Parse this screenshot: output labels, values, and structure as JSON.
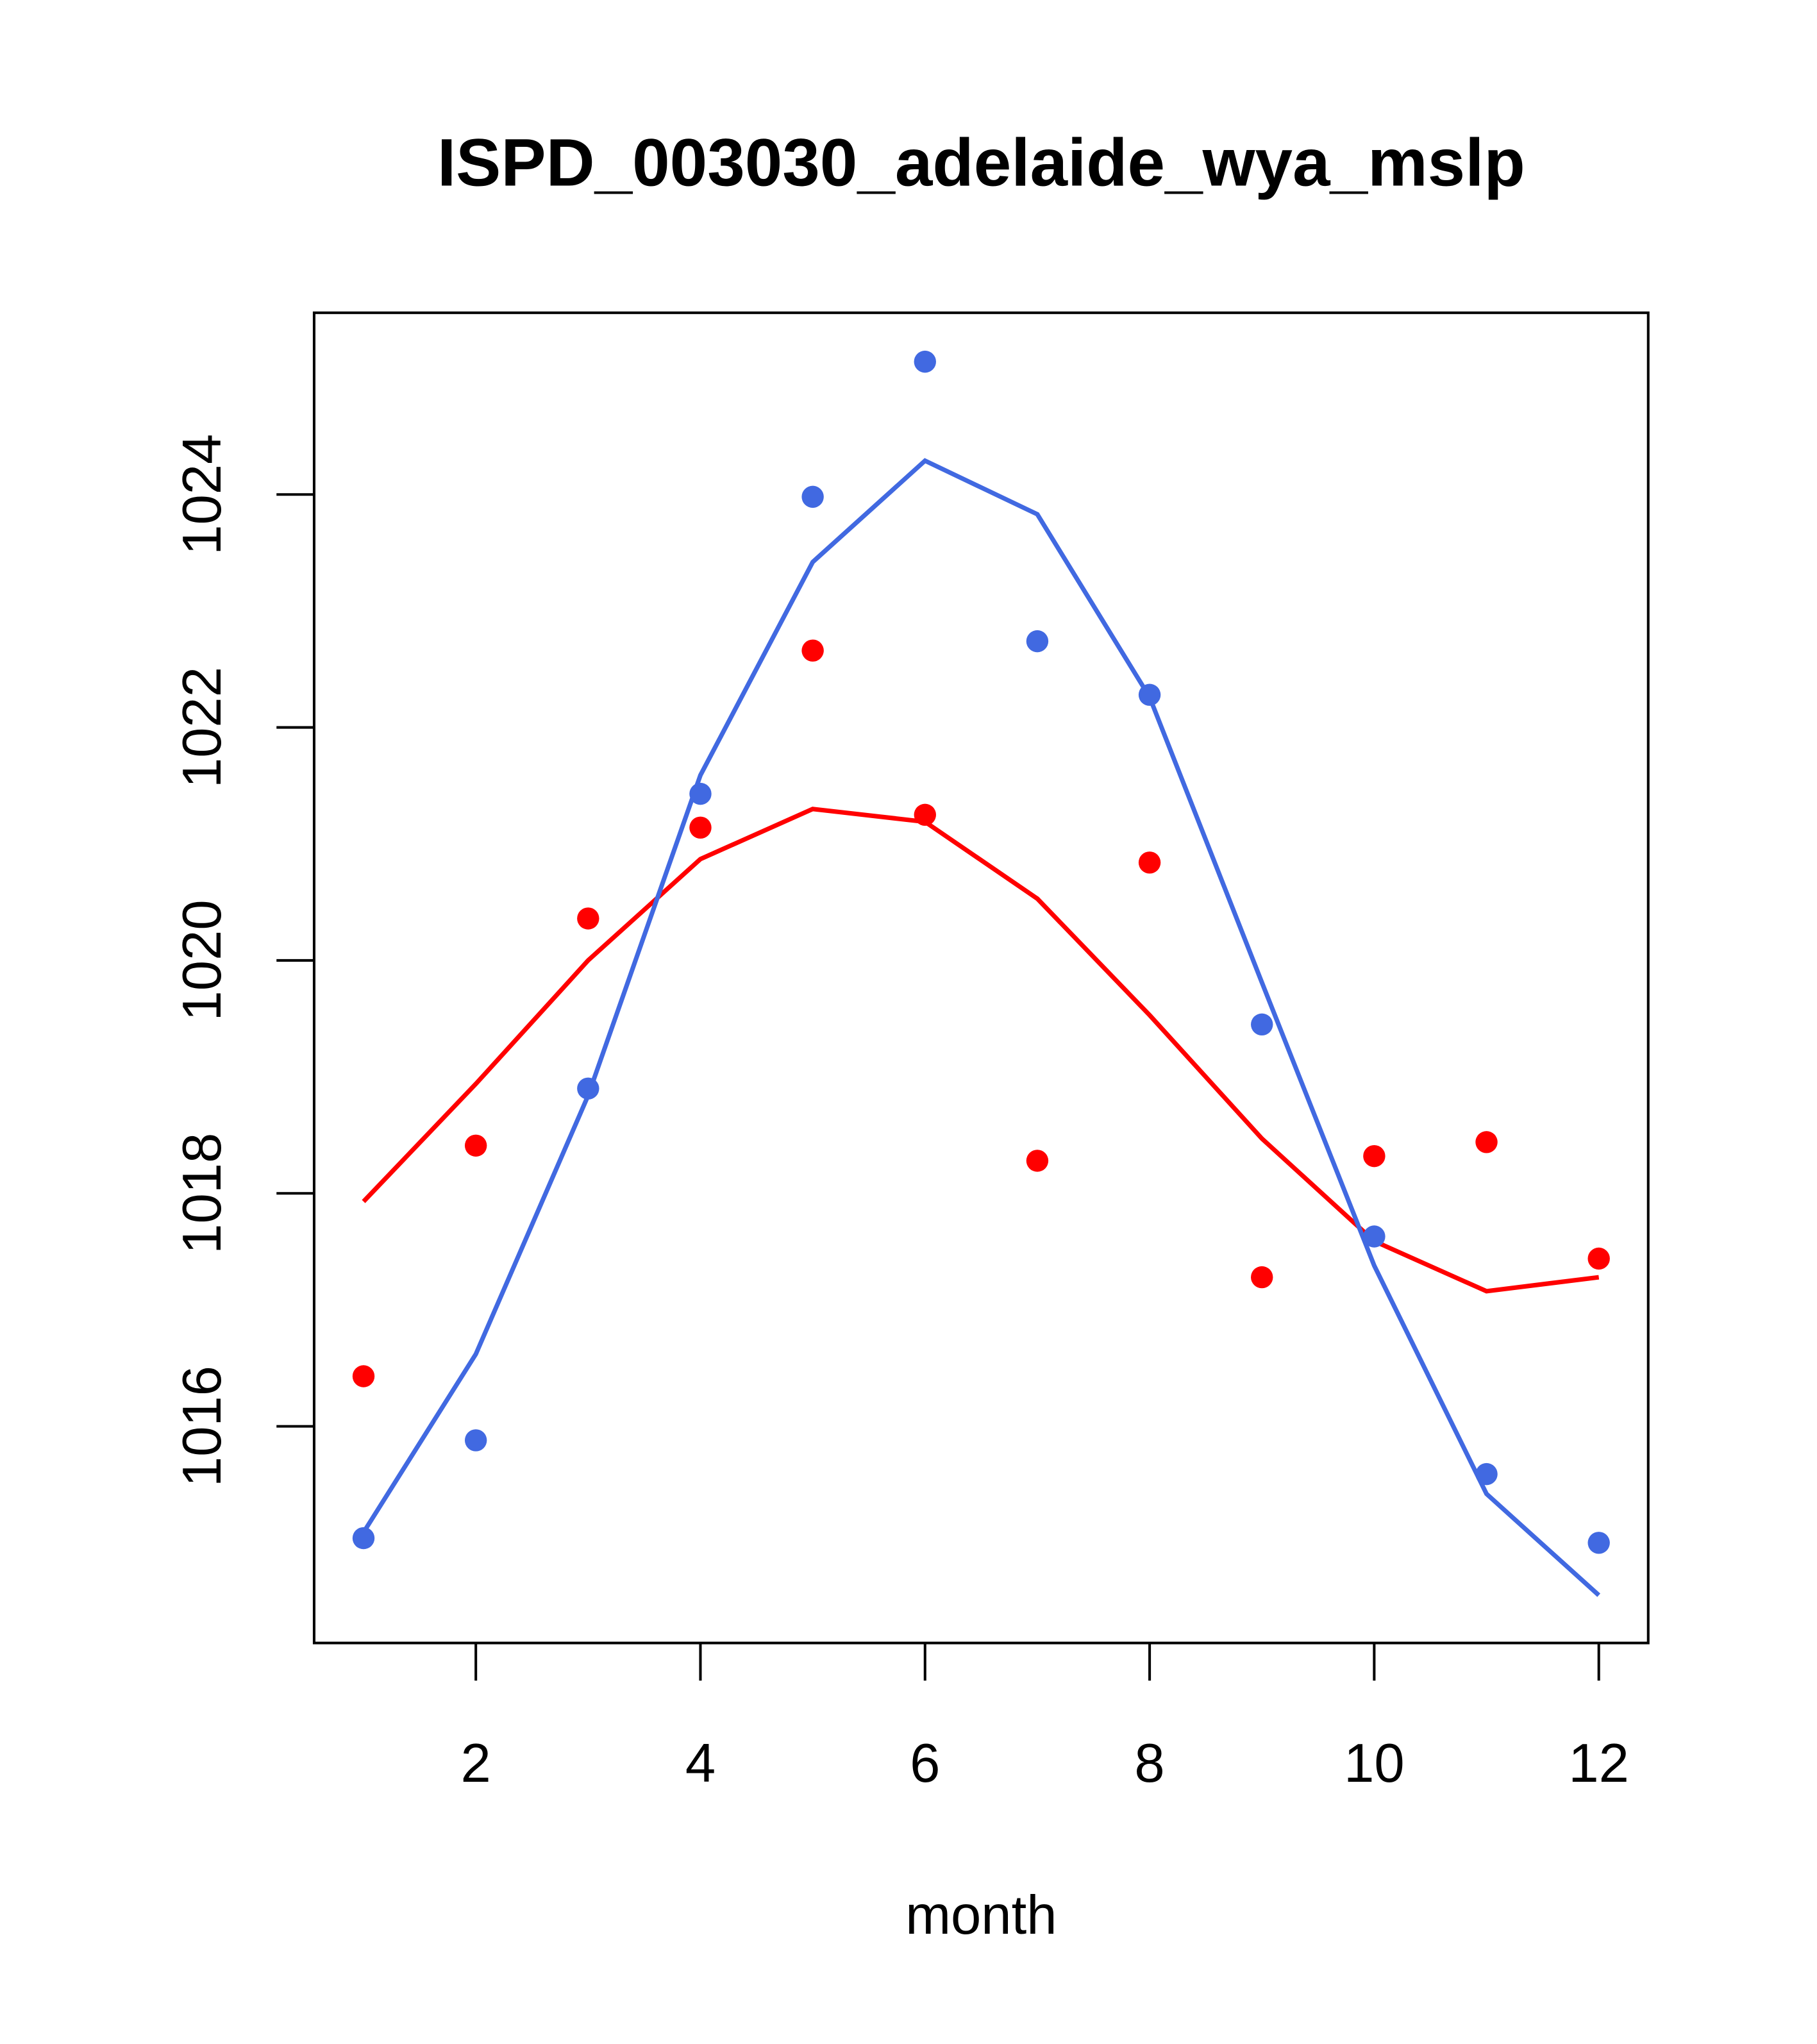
{
  "chart_data": {
    "type": "line",
    "title": "ISPD_003030_adelaide_wya_mslp",
    "xlabel": "month",
    "ylabel": "",
    "xlim": [
      0.56,
      12.44
    ],
    "ylim": [
      1014.14,
      1025.56
    ],
    "x_ticks": [
      2,
      4,
      6,
      8,
      10,
      12
    ],
    "y_ticks": [
      1016,
      1018,
      1020,
      1022,
      1024
    ],
    "x": [
      1,
      2,
      3,
      4,
      5,
      6,
      7,
      8,
      9,
      10,
      11,
      12
    ],
    "series": [
      {
        "name": "red",
        "color": "#ff0000",
        "points": [
          1016.43,
          1018.41,
          1020.36,
          1021.14,
          1022.66,
          1021.25,
          1018.28,
          1020.84,
          1017.28,
          1018.32,
          1018.44,
          1017.44
        ],
        "line": [
          1017.93,
          1018.94,
          1020.0,
          1020.87,
          1021.3,
          1021.19,
          1020.53,
          1019.53,
          1018.47,
          1017.59,
          1017.16,
          1017.28
        ]
      },
      {
        "name": "blue",
        "color": "#4169e1",
        "points": [
          1015.04,
          1015.88,
          1018.9,
          1021.43,
          1023.98,
          1025.14,
          1022.74,
          1022.28,
          1019.45,
          1017.63,
          1015.59,
          1015.0
        ],
        "line": [
          1015.09,
          1016.62,
          1018.84,
          1021.59,
          1023.42,
          1024.29,
          1023.83,
          1022.26,
          1019.81,
          1017.38,
          1015.42,
          1014.55
        ]
      }
    ],
    "grid": false,
    "legend": "none"
  }
}
